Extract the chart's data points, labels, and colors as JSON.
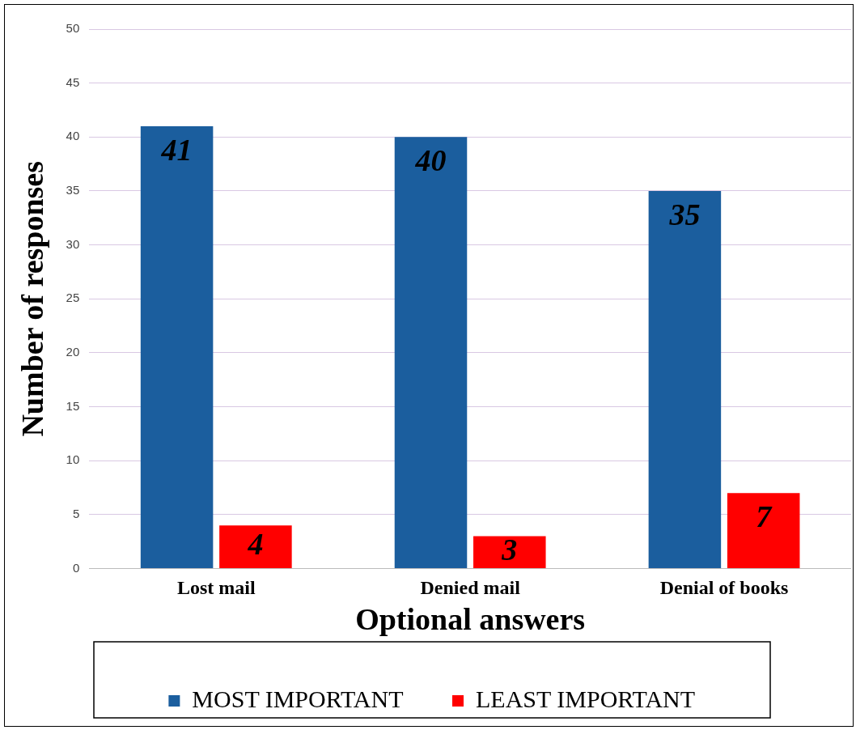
{
  "chart_data": {
    "type": "bar",
    "xlabel": "Optional answers",
    "ylabel": "Number of responses",
    "categories": [
      "Lost mail",
      "Denied mail",
      "Denial of books"
    ],
    "series": [
      {
        "name": "MOST IMPORTANT",
        "color": "#1b5e9e",
        "values": [
          41,
          40,
          35
        ]
      },
      {
        "name": "LEAST IMPORTANT",
        "color": "#ff0000",
        "values": [
          4,
          3,
          7
        ]
      }
    ],
    "ylim": [
      0,
      50
    ],
    "yticks": [
      0,
      5,
      10,
      15,
      20,
      25,
      30,
      35,
      40,
      45,
      50
    ],
    "grid": "y",
    "legend": "bottom",
    "data_labels": true
  }
}
